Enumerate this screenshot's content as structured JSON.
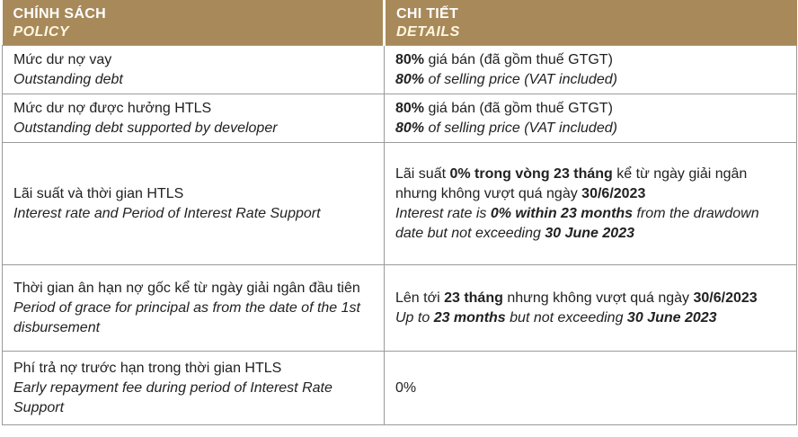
{
  "header": {
    "col1_vi": "CHÍNH SÁCH",
    "col1_en": "POLICY",
    "col2_vi": "CHI TIẾT",
    "col2_en": "DETAILS"
  },
  "rows": [
    {
      "policy_vi": "Mức dư nợ vay",
      "policy_en": "Outstanding debt",
      "d_vi_b1": "80%",
      "d_vi_t1": " giá bán (đã gồm thuế GTGT)",
      "d_en_b1": "80%",
      "d_en_t1": " of selling price (VAT included)"
    },
    {
      "policy_vi": "Mức dư nợ được hưởng HTLS",
      "policy_en": "Outstanding debt supported by developer",
      "d_vi_b1": "80%",
      "d_vi_t1": " giá bán (đã gồm thuế GTGT)",
      "d_en_b1": "80%",
      "d_en_t1": " of selling price (VAT included)"
    },
    {
      "policy_vi": "Lãi suất và thời gian HTLS",
      "policy_en": "Interest rate and Period of Interest Rate Support",
      "d_vi_t0": "Lãi suất ",
      "d_vi_b1": "0% trong vòng 23 tháng",
      "d_vi_t1": " kể từ ngày giải ngân nhưng không vượt quá ngày ",
      "d_vi_b2": "30/6/2023",
      "d_en_t0": "Interest rate is ",
      "d_en_b1": "0% within 23 months",
      "d_en_t1": " from the drawdown date but not exceeding ",
      "d_en_b2": "30 June 2023"
    },
    {
      "policy_vi": "Thời gian ân hạn nợ gốc kể từ ngày giải ngân đầu tiên",
      "policy_en": "Period of grace for principal as from the date of the 1st disbursement",
      "d_vi_t0": "Lên tới ",
      "d_vi_b1": "23 tháng",
      "d_vi_t1": " nhưng không vượt quá ngày ",
      "d_vi_b2": "30/6/2023",
      "d_en_t0": "Up to ",
      "d_en_b1": "23 months",
      "d_en_t1": " but not exceeding ",
      "d_en_b2": "30 June 2023"
    },
    {
      "policy_vi": "Phí trả nợ trước hạn trong thời gian HTLS",
      "policy_en": "Early repayment fee during period of Interest Rate Support",
      "detail": "0%"
    }
  ]
}
